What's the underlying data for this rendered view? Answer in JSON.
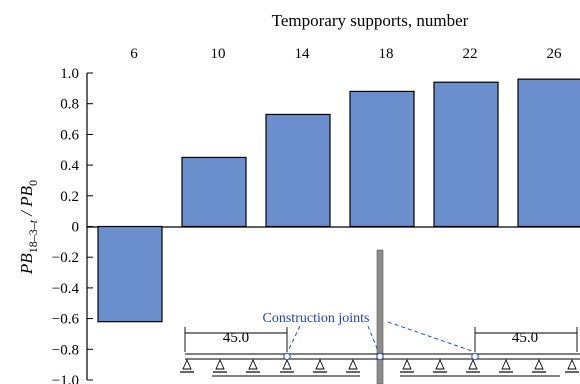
{
  "chart_data": {
    "type": "bar",
    "top_axis_title": "Temporary supports, number",
    "categories": [
      "6",
      "10",
      "14",
      "18",
      "22",
      "26"
    ],
    "values": [
      -0.62,
      0.45,
      0.73,
      0.88,
      0.94,
      0.96
    ],
    "ylabel": {
      "main": "PB",
      "sub1": "18–3–",
      "sub1_italic": "t",
      "slash": " / PB",
      "sub2": "0"
    },
    "ylim": [
      -1.0,
      1.0
    ],
    "yticks": [
      1.0,
      0.8,
      0.6,
      0.4,
      0.2,
      0,
      -0.2,
      -0.4,
      -0.6,
      -0.8,
      -1.0
    ],
    "ytick_labels": [
      "1.0",
      "0.8",
      "0.6",
      "0.4",
      "0.2",
      "0",
      "−0.2",
      "−0.4",
      "−0.6",
      "−0.8",
      "−1.0"
    ],
    "bar_color": "#6a8fcc",
    "grid": false,
    "annotations": {
      "construction_joints": "Construction joints",
      "dimension_left": "45.0",
      "dimension_right": "45.0"
    }
  }
}
